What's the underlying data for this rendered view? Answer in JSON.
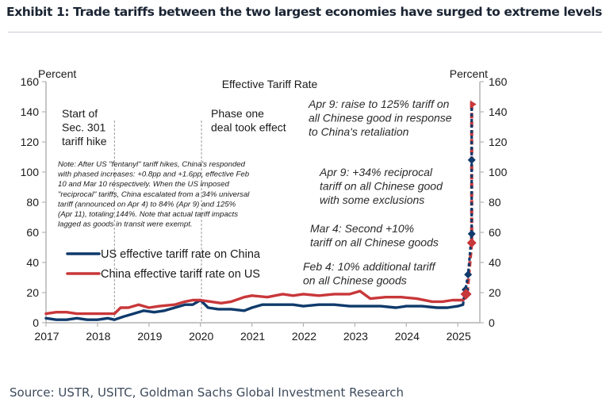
{
  "header": {
    "title": "Exhibit 1: Trade tariffs between the two largest economies have surged to extreme levels"
  },
  "footer": {
    "source": "Source: USTR, USITC, Goldman Sachs Global Investment Research"
  },
  "chart_data": {
    "type": "line",
    "title": "Effective Tariff Rate",
    "ylabel_left": "Percent",
    "ylabel_right": "Percent",
    "xlabel": "",
    "ylim": [
      0,
      160
    ],
    "xlim": [
      2017,
      2025.43
    ],
    "yticks": [
      0,
      20,
      40,
      60,
      80,
      100,
      120,
      140,
      160
    ],
    "xticks": [
      2017,
      2018,
      2019,
      2020,
      2021,
      2022,
      2023,
      2024,
      2025
    ],
    "xtick_labels": [
      "2017",
      "2018",
      "2019",
      "2020",
      "2021",
      "2022",
      "2023",
      "2024",
      "2025"
    ],
    "grid": false,
    "legend": "center-left",
    "colors": {
      "us": "#0f3a6b",
      "china": "#c8373a",
      "vline": "#999999"
    },
    "series": [
      {
        "name": "US effective tariff rate on China",
        "key": "us",
        "x": [
          2017.0,
          2017.2,
          2017.4,
          2017.6,
          2017.8,
          2018.0,
          2018.2,
          2018.33,
          2018.5,
          2018.7,
          2018.9,
          2019.1,
          2019.3,
          2019.5,
          2019.7,
          2019.85,
          2020.0,
          2020.15,
          2020.35,
          2020.6,
          2020.85,
          2021.0,
          2021.2,
          2021.5,
          2021.8,
          2022.0,
          2022.3,
          2022.6,
          2022.9,
          2023.2,
          2023.5,
          2023.8,
          2024.0,
          2024.3,
          2024.6,
          2024.8,
          2025.0,
          2025.1
        ],
        "y": [
          3,
          2,
          2,
          3,
          2,
          2,
          3,
          2,
          4,
          6,
          8,
          7,
          8,
          10,
          12,
          12,
          15,
          10,
          9,
          9,
          8,
          10,
          12,
          12,
          12,
          11,
          12,
          12,
          11,
          11,
          11,
          10,
          11,
          11,
          10,
          10,
          11,
          12
        ]
      },
      {
        "name": "China effective tariff rate on US",
        "key": "china",
        "x": [
          2017.0,
          2017.2,
          2017.4,
          2017.6,
          2017.8,
          2018.0,
          2018.2,
          2018.33,
          2018.45,
          2018.6,
          2018.8,
          2019.0,
          2019.2,
          2019.5,
          2019.7,
          2019.85,
          2020.0,
          2020.2,
          2020.4,
          2020.6,
          2020.85,
          2021.0,
          2021.3,
          2021.6,
          2021.8,
          2022.0,
          2022.3,
          2022.6,
          2022.9,
          2023.1,
          2023.3,
          2023.6,
          2023.9,
          2024.2,
          2024.5,
          2024.7,
          2024.9,
          2025.1
        ],
        "y": [
          6,
          7,
          7,
          6,
          6,
          6,
          6,
          6,
          10,
          10,
          12,
          10,
          11,
          12,
          14,
          15,
          15,
          14,
          13,
          14,
          17,
          18,
          17,
          19,
          18,
          19,
          18,
          19,
          19,
          21,
          16,
          17,
          17,
          16,
          14,
          14,
          15,
          15
        ]
      }
    ],
    "spike": {
      "us": {
        "x": [
          2025.1,
          2025.15,
          2025.2,
          2025.27,
          2025.27,
          2025.27
        ],
        "y": [
          12,
          22,
          32,
          59,
          108,
          145
        ],
        "markers": [
          22,
          32,
          59,
          108
        ]
      },
      "china": {
        "x": [
          2025.1,
          2025.18,
          2025.27,
          2025.27,
          2025.28
        ],
        "y": [
          15,
          19,
          53,
          145,
          145
        ],
        "markers": [
          19,
          53,
          145
        ]
      }
    },
    "vlines": [
      {
        "x": 2018.33,
        "label_lines": [
          "Start of",
          "Sec. 301",
          "tariff hike"
        ]
      },
      {
        "x": 2020.02,
        "label_lines": [
          "Phase one",
          "deal took effect"
        ]
      }
    ],
    "annotations": [
      {
        "id": "apr9-125",
        "lines": [
          "Apr 9: raise to 125% tariff on",
          "all Chinese good in response",
          "to China's retaliation"
        ]
      },
      {
        "id": "apr9-34",
        "lines": [
          "Apr 9: +34% reciprocal",
          "tariff on all Chinese good",
          "with some exclusions"
        ]
      },
      {
        "id": "mar4",
        "lines": [
          "Mar 4: Second +10%",
          "tariff on all Chinese goods"
        ]
      },
      {
        "id": "feb4",
        "lines": [
          "Feb 4: 10% additional tariff",
          "on all Chinese goods"
        ]
      }
    ],
    "note_lines": [
      "Note: After US \"fentanyl\" tariff hikes, China's responded",
      "with phased increases: +0.8pp and +1.6pp, effective Feb",
      "10 and Mar 10 respectively. When the US imposed",
      "\"reciprocal\" tariffs, China escalated from a 34% universal",
      "tariff (announced on Apr 4) to 84% (Apr 9) and  125%",
      "(Apr 11), totaling 144%. Note that actual tariff impacts",
      "lagged as goods in transit were exempt."
    ]
  }
}
